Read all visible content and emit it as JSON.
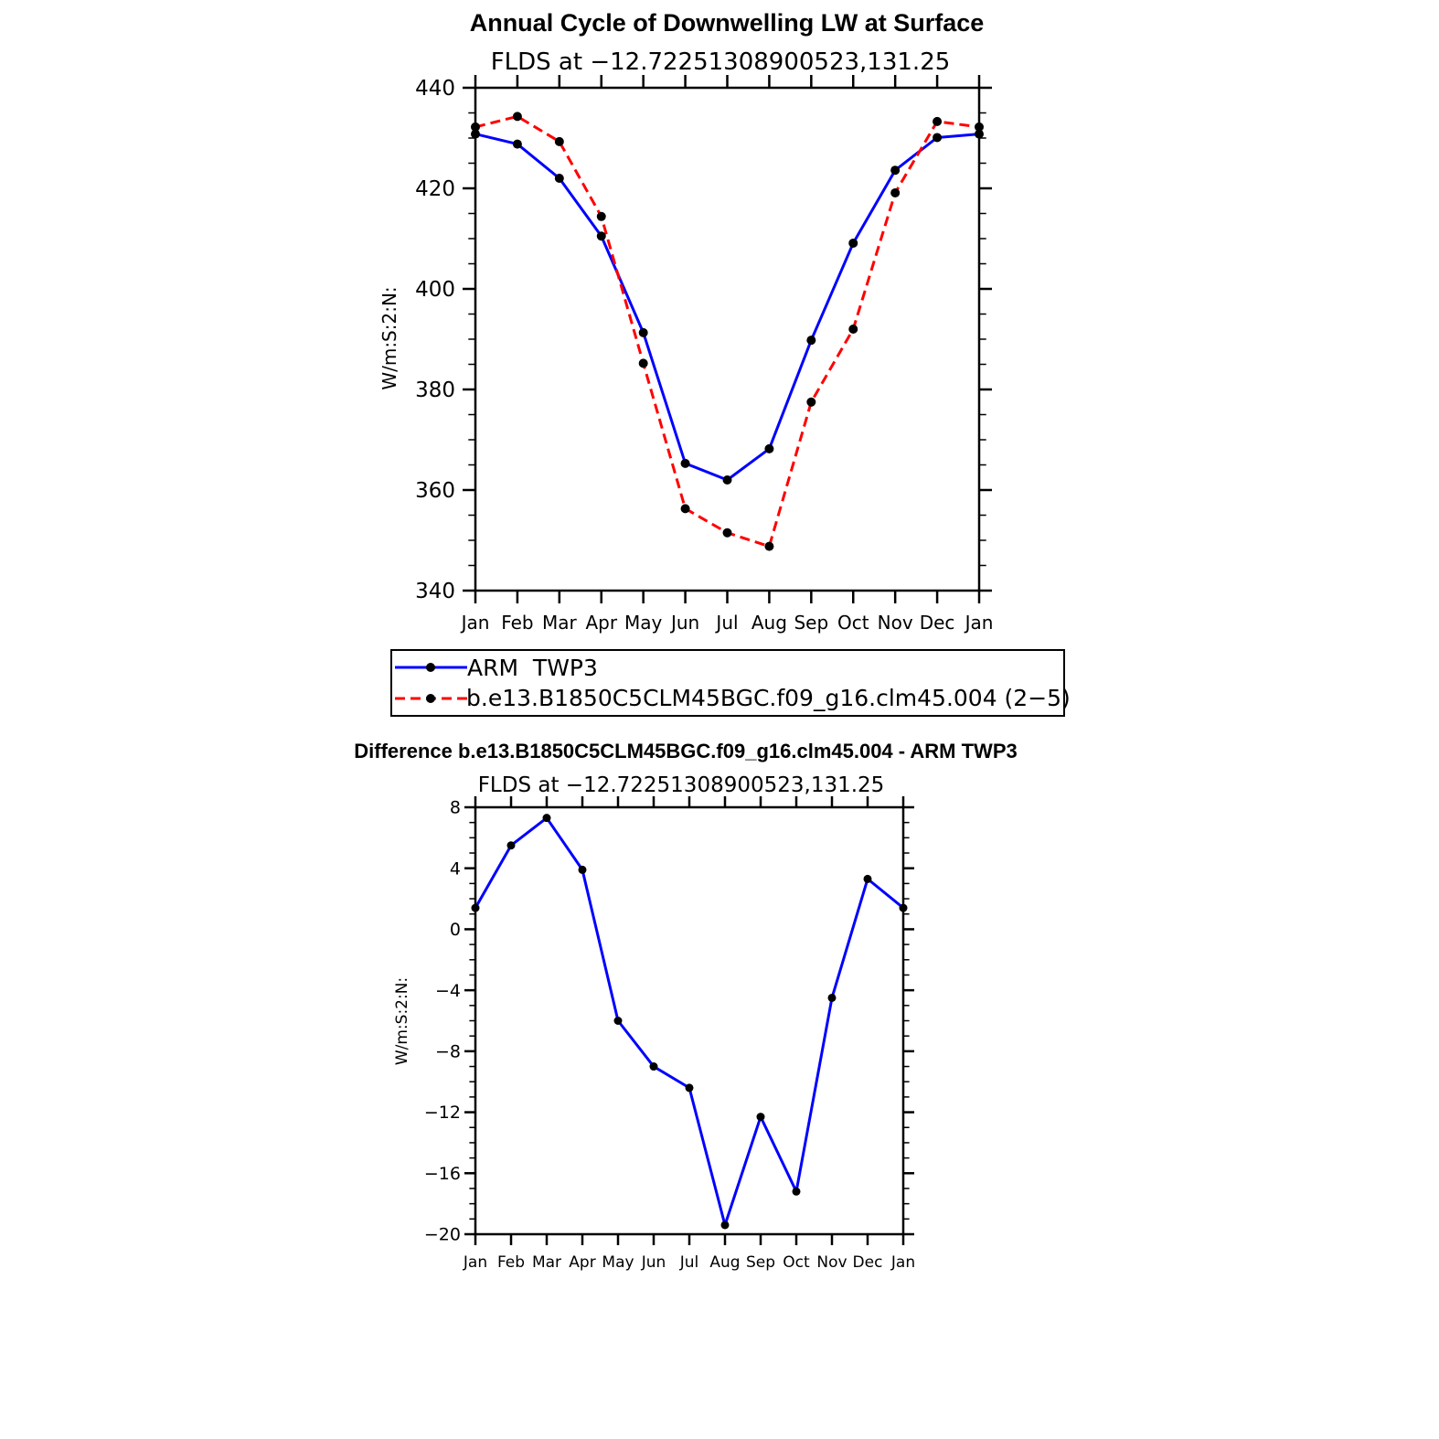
{
  "chart_data": [
    {
      "type": "line",
      "title": "Annual Cycle of Downwelling LW at Surface",
      "subtitle": "FLDS at −12.72251308900523,131.25",
      "xlabel": "",
      "ylabel": "W/m:S:2:N:",
      "categories": [
        "Jan",
        "Feb",
        "Mar",
        "Apr",
        "May",
        "Jun",
        "Jul",
        "Aug",
        "Sep",
        "Oct",
        "Nov",
        "Dec",
        "Jan"
      ],
      "ylim": [
        340,
        440
      ],
      "yticks": [
        "340",
        "360",
        "380",
        "400",
        "420",
        "440"
      ],
      "series": [
        {
          "name": "ARM  TWP3",
          "color": "#0000ff",
          "dash": "solid",
          "values": [
            430.8,
            428.8,
            422.0,
            410.5,
            391.3,
            365.3,
            362.0,
            368.2,
            389.8,
            409.1,
            423.6,
            430.1,
            430.8
          ]
        },
        {
          "name": "b.e13.B1850C5CLM45BGC.f09_g16.clm45.004 (2−5)",
          "color": "#ff0000",
          "dash": "dashed",
          "values": [
            432.2,
            434.3,
            429.3,
            414.4,
            385.2,
            356.3,
            351.5,
            348.8,
            377.5,
            392.0,
            419.1,
            433.3,
            432.2
          ]
        }
      ],
      "legend_position": "below"
    },
    {
      "type": "line",
      "title": "Difference b.e13.B1850C5CLM45BGC.f09_g16.clm45.004 - ARM TWP3",
      "subtitle": "FLDS at −12.72251308900523,131.25",
      "xlabel": "",
      "ylabel": "W/m:S:2:N:",
      "categories": [
        "Jan",
        "Feb",
        "Mar",
        "Apr",
        "May",
        "Jun",
        "Jul",
        "Aug",
        "Sep",
        "Oct",
        "Nov",
        "Dec",
        "Jan"
      ],
      "ylim": [
        -20,
        8
      ],
      "yticks": [
        "−20",
        "−16",
        "−12",
        "−8",
        "−4",
        "0",
        "4",
        "8"
      ],
      "series": [
        {
          "name": "Difference",
          "color": "#0000ff",
          "dash": "solid",
          "values": [
            1.4,
            5.5,
            7.3,
            3.9,
            -6.0,
            -9.0,
            -10.4,
            -19.4,
            -12.3,
            -17.2,
            -4.5,
            3.3,
            1.4
          ]
        }
      ]
    }
  ]
}
